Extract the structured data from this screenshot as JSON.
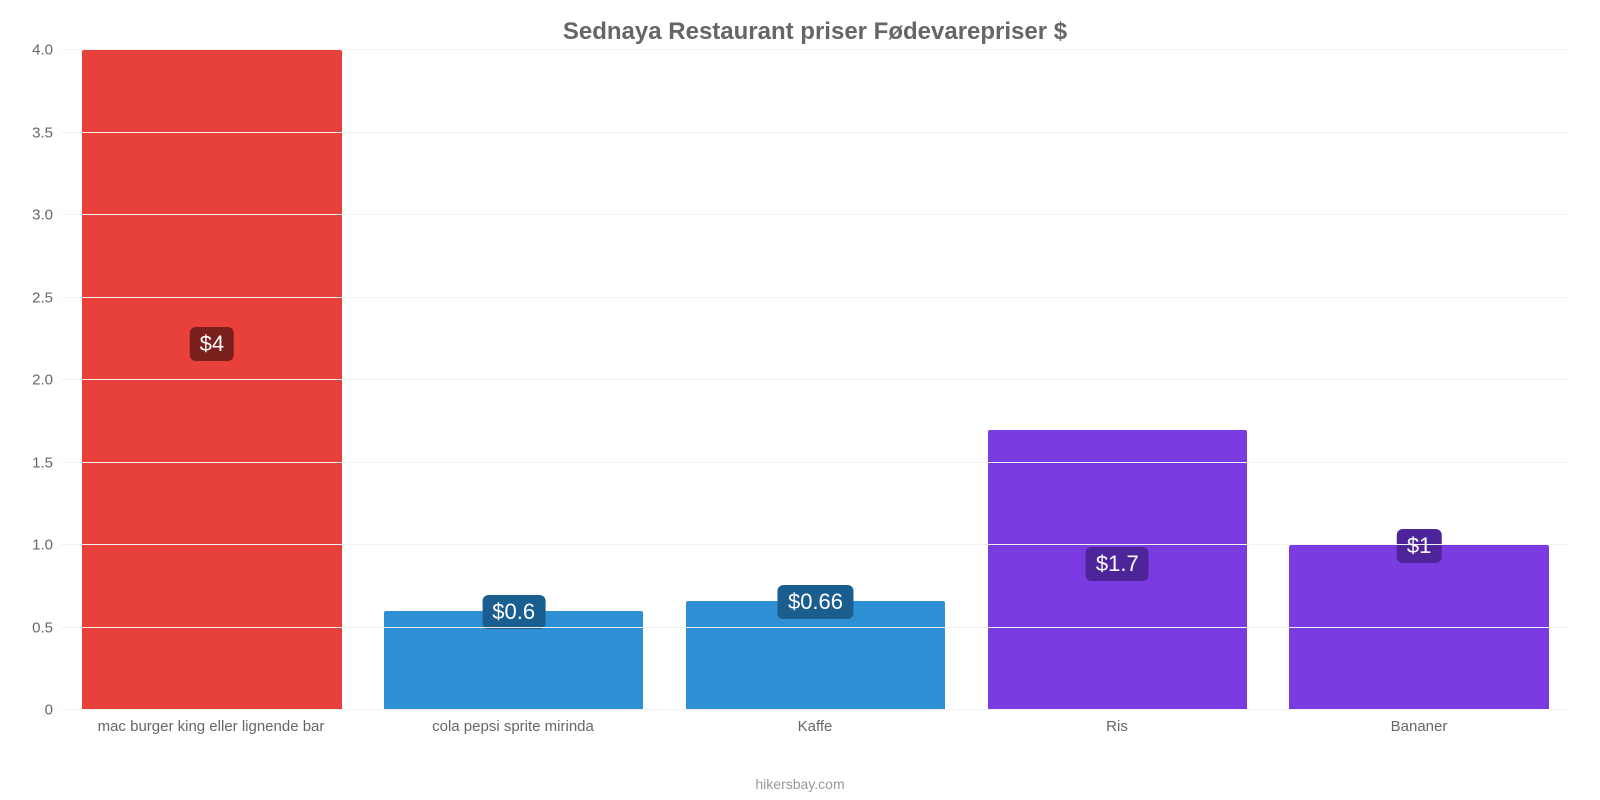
{
  "chart": {
    "type": "bar",
    "title": "Sednaya Restaurant priser Fødevarepriser $",
    "title_fontsize": 24,
    "title_color": "#666666",
    "background_color": "#ffffff",
    "grid_color": "#f2f2f2",
    "axis_color": "#cccccc",
    "label_color": "#666666",
    "label_fontsize": 15,
    "ylim": [
      0,
      4.0
    ],
    "ytick_step": 0.5,
    "yticks": [
      "0",
      "0.5",
      "1.0",
      "1.5",
      "2.0",
      "2.5",
      "3.0",
      "3.5",
      "4.0"
    ],
    "bar_width_pct": 86,
    "categories": [
      "mac burger king eller lignende bar",
      "cola pepsi sprite mirinda",
      "Kaffe",
      "Ris",
      "Bananer"
    ],
    "values": [
      4.0,
      0.6,
      0.66,
      1.7,
      1.0
    ],
    "value_labels": [
      "$4",
      "$0.6",
      "$0.66",
      "$1.7",
      "$1"
    ],
    "bar_colors": [
      "#e8403a",
      "#2f8fd4",
      "#2f8fd4",
      "#7a3be0",
      "#7a3be0"
    ],
    "badge_bg_colors": [
      "#7a1f1c",
      "#1a5d8f",
      "#1a5d8f",
      "#4d2499",
      "#4d2499"
    ],
    "source_text": "hikersbay.com",
    "source_color": "#999999"
  }
}
